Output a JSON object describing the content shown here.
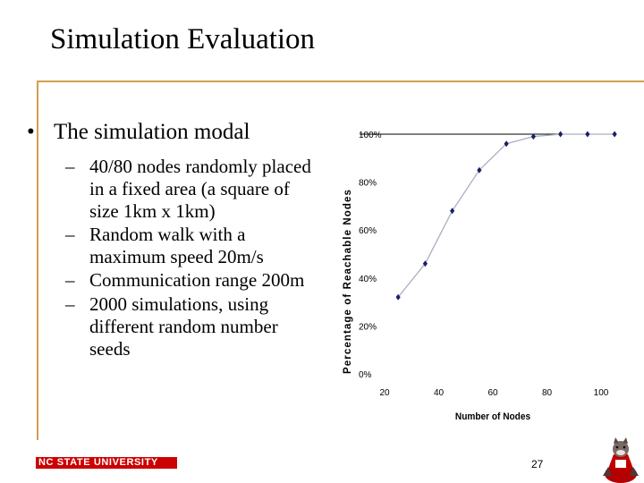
{
  "slide": {
    "title": "Simulation Evaluation",
    "bullet": "The simulation modal",
    "sub_items": [
      "40/80 nodes randomly placed in a fixed area (a square of size 1km x 1km)",
      "Random walk with a maximum speed 20m/s",
      "Communication range 200m",
      "2000 simulations, using different random number seeds"
    ],
    "footer": "NC STATE UNIVERSITY",
    "page_number": "27"
  },
  "chart_data": {
    "type": "line",
    "title": "",
    "xlabel": "Number of Nodes",
    "ylabel": "Percentage of Reachable Nodes",
    "x": [
      25,
      35,
      45,
      55,
      65,
      75,
      85,
      95,
      105
    ],
    "series": [
      {
        "values": [
          32,
          46,
          68,
          85,
          96,
          99,
          100,
          100,
          100
        ]
      }
    ],
    "xlim": [
      20,
      100
    ],
    "ylim": [
      0,
      100
    ],
    "x_ticks": [
      "20",
      "40",
      "60",
      "80",
      "100"
    ],
    "y_ticks": [
      "0%",
      "20%",
      "40%",
      "60%",
      "80%",
      "100%"
    ],
    "grid": false,
    "line_color": "#a9b0c4",
    "marker_color": "#1b1f66"
  }
}
